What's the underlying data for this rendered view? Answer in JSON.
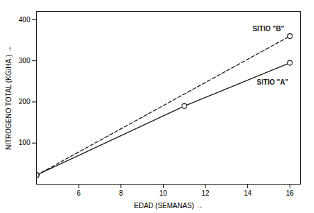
{
  "chart_data": {
    "type": "line",
    "xlabel": "EDAD (SEMANAS)",
    "ylabel": "NITROGENO TOTAL (KG/HA.)",
    "series": [
      {
        "name": "SITIO \"B\"",
        "color": "#1a1a1a",
        "line_style": "dashed",
        "marker": "circle",
        "x": [
          4,
          16
        ],
        "values": [
          22,
          360
        ]
      },
      {
        "name": "SITIO \"A\"",
        "color": "#1a1a1a",
        "line_style": "solid",
        "marker": "circle",
        "x": [
          4,
          11,
          16
        ],
        "values": [
          22,
          190,
          295
        ]
      }
    ],
    "xlim": [
      4,
      16.5
    ],
    "ylim": [
      0,
      420
    ],
    "xticks": [
      6,
      8,
      10,
      12,
      14,
      16
    ],
    "yticks": [
      100,
      200,
      300,
      400
    ],
    "grid": false
  }
}
